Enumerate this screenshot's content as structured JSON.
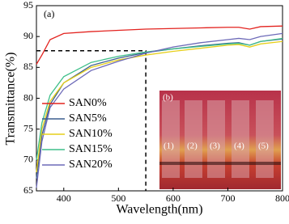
{
  "chart_data": {
    "type": "line",
    "panel_label": "(a)",
    "x_label": "Wavelength(nm)",
    "y_label": "Transmittance(%)",
    "x": [
      350,
      360,
      375,
      400,
      450,
      500,
      550,
      600,
      650,
      700,
      720,
      740,
      760,
      800
    ],
    "series": [
      {
        "name": "SAN0%",
        "color": "#e3231f",
        "values": [
          85.5,
          87,
          89.5,
          90.5,
          90.8,
          91,
          91.2,
          91.3,
          91.4,
          91.5,
          91.5,
          91.2,
          91.6,
          91.7
        ]
      },
      {
        "name": "SAN5%",
        "color": "#3b5f8f",
        "values": [
          67,
          74,
          79,
          82.5,
          85.3,
          86.5,
          87.4,
          88,
          88.5,
          88.9,
          89,
          88.6,
          89.2,
          89.6
        ]
      },
      {
        "name": "SAN10%",
        "color": "#e6cf1a",
        "values": [
          68,
          75,
          79.5,
          82.5,
          85,
          86.2,
          87,
          87.6,
          88.1,
          88.6,
          88.7,
          88.3,
          88.8,
          89.2
        ]
      },
      {
        "name": "SAN15%",
        "color": "#3fbf8a",
        "values": [
          70,
          76,
          80.5,
          83.5,
          85.8,
          86.8,
          87.5,
          88,
          88.4,
          88.8,
          88.9,
          88.6,
          89.2,
          89.7
        ]
      },
      {
        "name": "SAN20%",
        "color": "#6d6ab8",
        "values": [
          65.5,
          73,
          78.5,
          81.5,
          84.5,
          86,
          87.3,
          88.3,
          89,
          89.5,
          89.7,
          89.5,
          90,
          90.5
        ]
      }
    ],
    "reference": {
      "x": 550,
      "y": 87.7
    },
    "xlim": [
      350,
      800
    ],
    "xticks": [
      400,
      500,
      600,
      700,
      800
    ],
    "ylim": [
      65,
      95
    ],
    "yticks": [
      65,
      70,
      75,
      80,
      85,
      90,
      95
    ],
    "legend": "lower-left",
    "inset_labels": [
      "(b)",
      "(1)",
      "(2)",
      "(3)",
      "(4)",
      "(5)"
    ]
  }
}
